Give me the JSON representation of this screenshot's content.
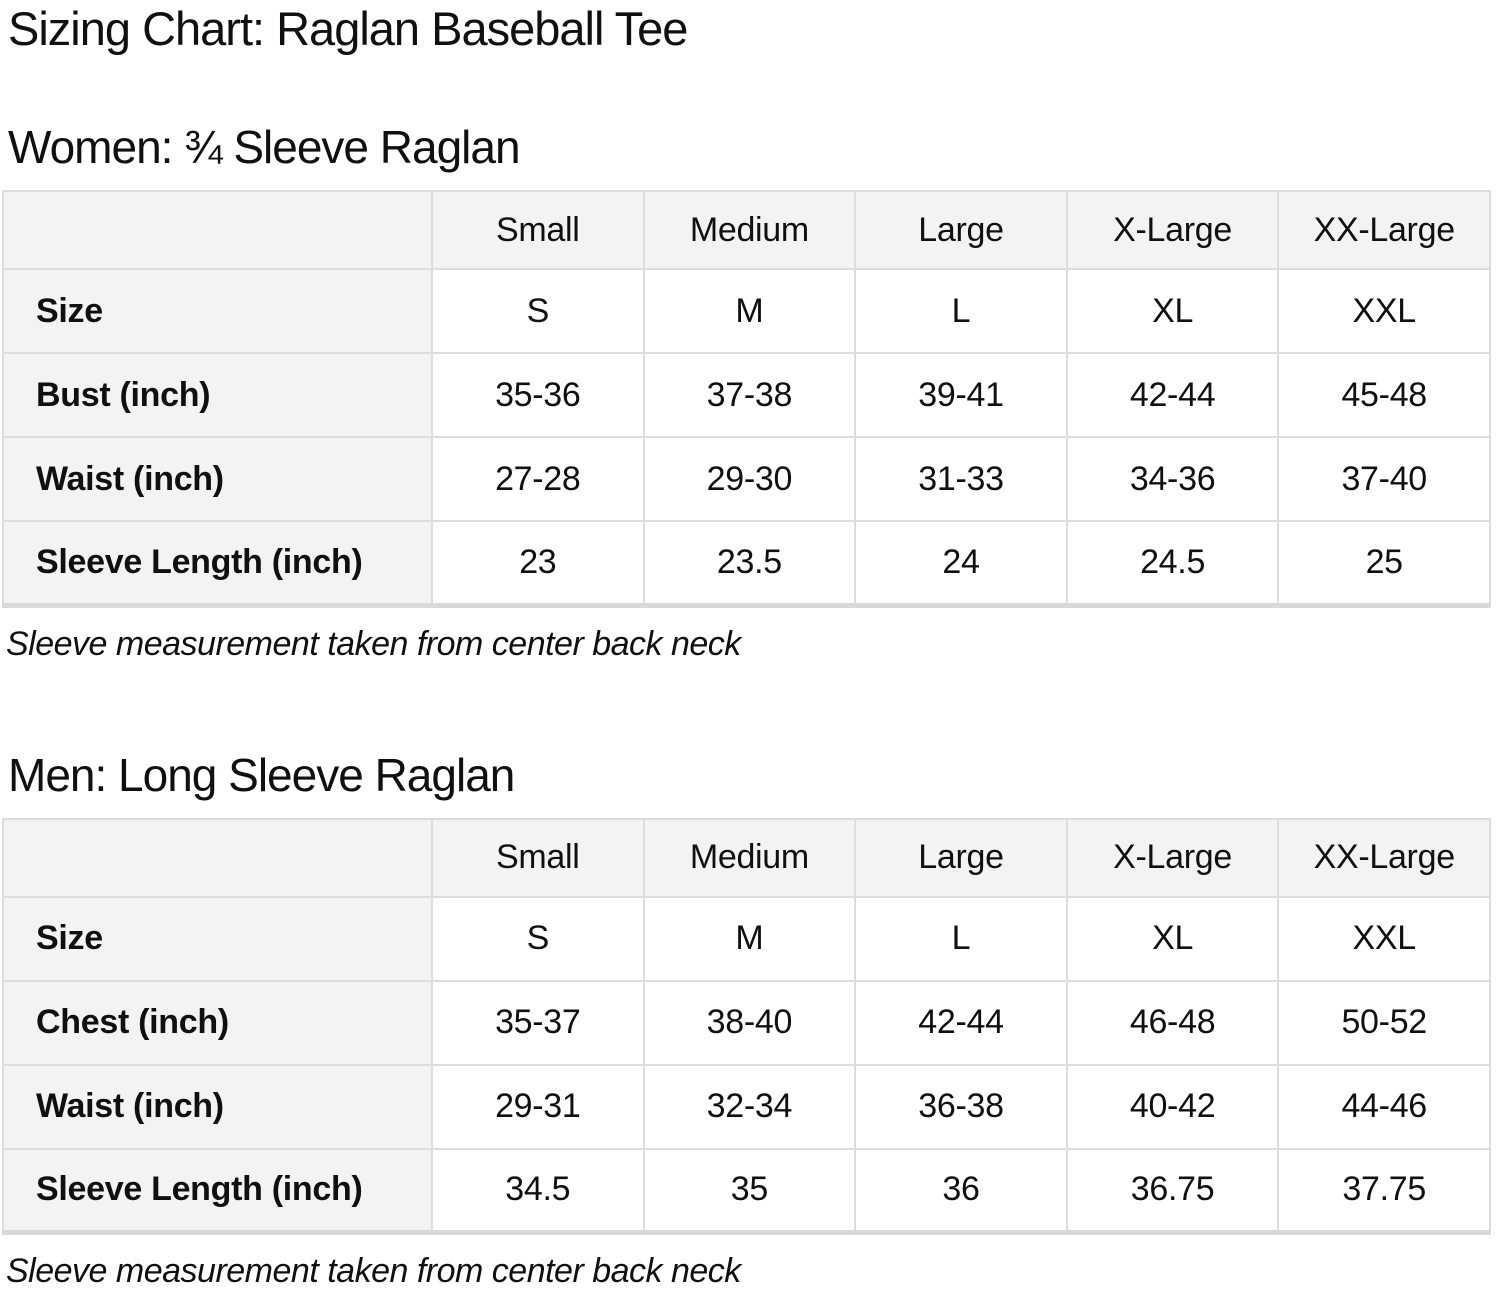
{
  "page": {
    "title": "Sizing Chart: Raglan Baseball Tee"
  },
  "colors": {
    "page_bg": "#ffffff",
    "text": "#0f1111",
    "table_header_bg": "#f3f3f3",
    "table_border": "#dddddd"
  },
  "sections": [
    {
      "heading": "Women: ¾ Sleeve Raglan",
      "note": "Sleeve measurement taken from center back neck",
      "table": {
        "column_headers": [
          "",
          "Small",
          "Medium",
          "Large",
          "X-Large",
          "XX-Large"
        ],
        "rows": [
          {
            "label": "Size",
            "values": [
              "S",
              "M",
              "L",
              "XL",
              "XXL"
            ]
          },
          {
            "label": "Bust (inch)",
            "values": [
              "35-36",
              "37-38",
              "39-41",
              "42-44",
              "45-48"
            ]
          },
          {
            "label": "Waist (inch)",
            "values": [
              "27-28",
              "29-30",
              "31-33",
              "34-36",
              "37-40"
            ]
          },
          {
            "label": "Sleeve Length (inch)",
            "values": [
              "23",
              "23.5",
              "24",
              "24.5",
              "25"
            ]
          }
        ]
      }
    },
    {
      "heading": "Men: Long Sleeve Raglan",
      "note": "Sleeve measurement taken from center back neck",
      "table": {
        "column_headers": [
          "",
          "Small",
          "Medium",
          "Large",
          "X-Large",
          "XX-Large"
        ],
        "rows": [
          {
            "label": "Size",
            "values": [
              "S",
              "M",
              "L",
              "XL",
              "XXL"
            ]
          },
          {
            "label": "Chest (inch)",
            "values": [
              "35-37",
              "38-40",
              "42-44",
              "46-48",
              "50-52"
            ]
          },
          {
            "label": "Waist (inch)",
            "values": [
              "29-31",
              "32-34",
              "36-38",
              "40-42",
              "44-46"
            ]
          },
          {
            "label": "Sleeve Length (inch)",
            "values": [
              "34.5",
              "35",
              "36",
              "36.75",
              "37.75"
            ]
          }
        ]
      }
    }
  ]
}
